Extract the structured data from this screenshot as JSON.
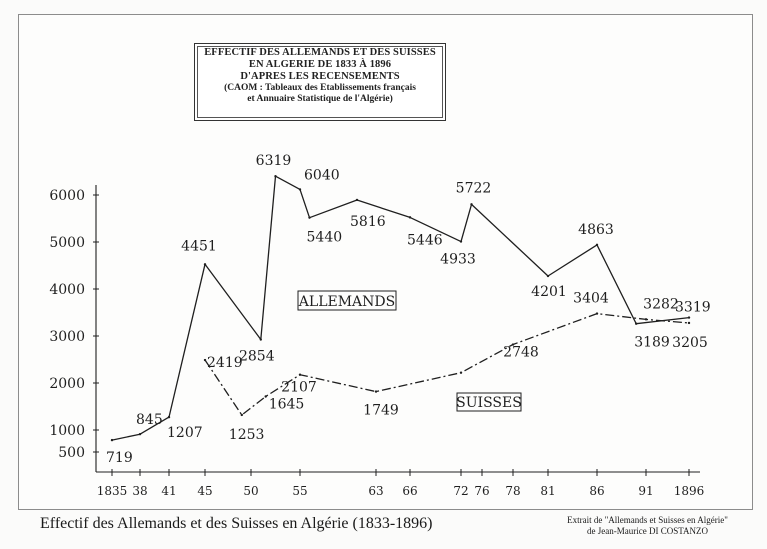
{
  "chart_data": {
    "type": "line",
    "title_lines": [
      "EFFECTIF DES ALLEMANDS ET DES SUISSES",
      "EN ALGERIE DE 1833 À 1896",
      "D'APRES LES RECENSEMENTS"
    ],
    "source_lines": [
      "(CAOM : Tableaux des Etablissements français",
      "et Annuaire Statistique de l'Algérie)"
    ],
    "ylim": [
      0,
      6000
    ],
    "y_ticks": [
      500,
      1000,
      2000,
      3000,
      4000,
      5000,
      6000
    ],
    "x_ticks": [
      "1835",
      "38",
      "41",
      "45",
      "50",
      "55",
      "63",
      "66",
      "72",
      "76",
      "78",
      "81",
      "86",
      "91",
      "1896"
    ],
    "x_tick_years": [
      1835,
      1838,
      1841,
      1845,
      1850,
      1855,
      1863,
      1866,
      1872,
      1876,
      1878,
      1881,
      1886,
      1891,
      1896
    ],
    "grid": false,
    "series": [
      {
        "name": "ALLEMANDS",
        "line_style": "solid",
        "points": [
          {
            "x": 1835,
            "y": 719,
            "label": "719"
          },
          {
            "x": 1838,
            "y": 845,
            "label": "845"
          },
          {
            "x": 1841,
            "y": 1207,
            "label": "1207"
          },
          {
            "x": 1845,
            "y": 4451,
            "label": "4451"
          },
          {
            "x": 1851,
            "y": 2854,
            "label": "2854"
          },
          {
            "x": 1852.5,
            "y": 6319,
            "label": "6319"
          },
          {
            "x": 1855,
            "y": 6040,
            "label": "6040"
          },
          {
            "x": 1856,
            "y": 5440,
            "label": "5440"
          },
          {
            "x": 1861,
            "y": 5816,
            "label": "5816"
          },
          {
            "x": 1866,
            "y": 5446,
            "label": "5446"
          },
          {
            "x": 1872,
            "y": 4933,
            "label": "4933"
          },
          {
            "x": 1874,
            "y": 5722,
            "label": "5722"
          },
          {
            "x": 1881,
            "y": 4201,
            "label": "4201"
          },
          {
            "x": 1886,
            "y": 4863,
            "label": "4863"
          },
          {
            "x": 1890,
            "y": 3189,
            "label": "3189"
          },
          {
            "x": 1896,
            "y": 3319,
            "label": "3319"
          }
        ]
      },
      {
        "name": "SUISSES",
        "line_style": "dashdot",
        "points": [
          {
            "x": 1845,
            "y": 2419,
            "label": "2419"
          },
          {
            "x": 1849,
            "y": 1253,
            "label": "1253"
          },
          {
            "x": 1851.5,
            "y": 1645,
            "label": "1645"
          },
          {
            "x": 1855,
            "y": 2107,
            "label": "2107"
          },
          {
            "x": 1863,
            "y": 1749,
            "label": "1749"
          },
          {
            "x": 1872,
            "y": 2150,
            "label": ""
          },
          {
            "x": 1878,
            "y": 2748,
            "label": "2748"
          },
          {
            "x": 1886,
            "y": 3404,
            "label": "3404"
          },
          {
            "x": 1891,
            "y": 3282,
            "label": "3282"
          },
          {
            "x": 1896,
            "y": 3205,
            "label": "3205"
          }
        ]
      }
    ],
    "colors": {
      "ink": "#1f1f1f",
      "paper": "#fdfdfc"
    }
  },
  "caption": "Effectif des Allemands et des Suisses en Algérie (1833-1896)",
  "credit_lines": [
    "Extrait de \"Allemands et Suisses en Algérie\"",
    "de Jean-Maurice DI COSTANZO"
  ]
}
